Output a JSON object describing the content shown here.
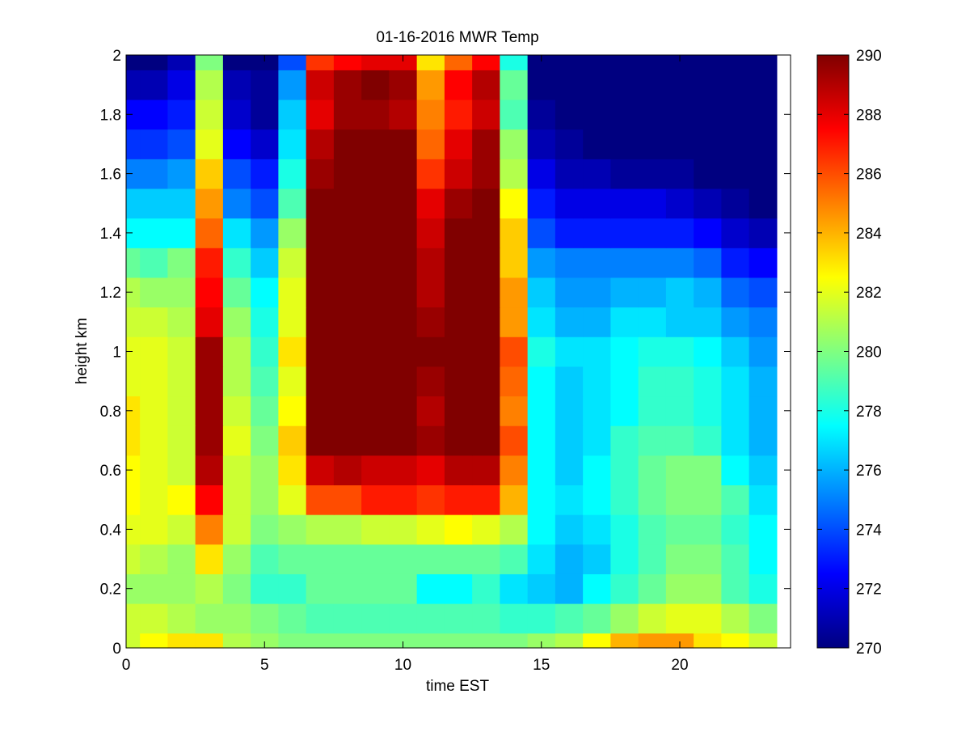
{
  "chart_data": {
    "type": "heatmap",
    "title": "01-16-2016 MWR Temp",
    "xlabel": "time EST",
    "ylabel": "height km",
    "xlim": [
      0,
      24
    ],
    "ylim": [
      0,
      2
    ],
    "xticks": [
      "0",
      "5",
      "10",
      "15",
      "20"
    ],
    "xtick_values": [
      0,
      5,
      10,
      15,
      20
    ],
    "yticks": [
      "0",
      "0.2",
      "0.4",
      "0.6",
      "0.8",
      "1",
      "1.2",
      "1.4",
      "1.6",
      "1.8",
      "2"
    ],
    "ytick_values": [
      0,
      0.2,
      0.4,
      0.6,
      0.8,
      1.0,
      1.2,
      1.4,
      1.6,
      1.8,
      2.0
    ],
    "colorbar": {
      "min": 270,
      "max": 290,
      "colormap": "jet",
      "ticks": [
        "270",
        "272",
        "274",
        "276",
        "278",
        "280",
        "282",
        "284",
        "286",
        "288",
        "290"
      ],
      "tick_values": [
        270,
        272,
        274,
        276,
        278,
        280,
        282,
        284,
        286,
        288,
        290
      ]
    },
    "x_edges": [
      0,
      0.5,
      1.5,
      2.5,
      3.5,
      4.5,
      5.5,
      6.5,
      7.5,
      8.5,
      9.5,
      10.5,
      11.5,
      12.5,
      13.5,
      14.5,
      15.5,
      16.5,
      17.5,
      18.5,
      19.5,
      20.5,
      21.5,
      22.5,
      23.5
    ],
    "y_edges": [
      0,
      0.05,
      0.15,
      0.25,
      0.35,
      0.45,
      0.55,
      0.65,
      0.75,
      0.85,
      0.95,
      1.05,
      1.15,
      1.25,
      1.35,
      1.45,
      1.55,
      1.65,
      1.75,
      1.85,
      1.95,
      2.0
    ],
    "values": [
      [
        281.5,
        282.5,
        283.0,
        283.0,
        281.0,
        280.5,
        280.0,
        280.0,
        280.0,
        280.0,
        280.0,
        280.0,
        280.0,
        280.0,
        280.0,
        280.5,
        281.0,
        282.5,
        284.0,
        284.5,
        284.5,
        283.0,
        282.5,
        281.5
      ],
      [
        281.5,
        281.5,
        281.0,
        280.5,
        280.5,
        280.0,
        279.5,
        279.0,
        279.0,
        279.0,
        279.0,
        279.0,
        279.0,
        279.0,
        278.5,
        278.5,
        279.0,
        279.5,
        280.5,
        281.5,
        282.0,
        282.0,
        281.0,
        280.0
      ],
      [
        280.5,
        280.5,
        280.5,
        281.0,
        280.0,
        278.5,
        278.5,
        279.5,
        279.5,
        279.5,
        279.5,
        277.5,
        277.5,
        278.5,
        277.0,
        276.5,
        276.0,
        277.5,
        278.5,
        279.5,
        280.5,
        280.5,
        279.0,
        278.0
      ],
      [
        281.5,
        281.0,
        280.5,
        283.0,
        280.5,
        279.0,
        279.5,
        279.5,
        279.5,
        279.5,
        279.5,
        279.5,
        279.5,
        279.5,
        279.0,
        277.0,
        276.0,
        276.5,
        278.0,
        279.0,
        280.0,
        280.0,
        279.0,
        277.5
      ],
      [
        282.0,
        282.0,
        281.5,
        285.0,
        281.5,
        280.0,
        280.5,
        281.0,
        281.0,
        281.5,
        281.5,
        282.0,
        282.5,
        282.0,
        281.0,
        277.5,
        276.5,
        277.0,
        278.0,
        279.0,
        279.5,
        279.5,
        278.5,
        277.5
      ],
      [
        282.5,
        282.0,
        282.5,
        287.5,
        281.5,
        280.5,
        282.0,
        286.0,
        286.0,
        287.0,
        287.0,
        286.5,
        287.0,
        287.0,
        284.0,
        277.5,
        277.0,
        277.5,
        278.5,
        279.5,
        280.0,
        280.0,
        279.0,
        277.0
      ],
      [
        282.5,
        282.0,
        281.5,
        289.0,
        281.5,
        280.5,
        283.0,
        288.5,
        289.0,
        288.5,
        288.5,
        288.0,
        289.0,
        289.0,
        285.0,
        277.5,
        276.5,
        277.5,
        278.5,
        279.5,
        280.0,
        280.0,
        277.5,
        276.5
      ],
      [
        283.0,
        282.0,
        281.5,
        289.5,
        282.0,
        280.0,
        283.5,
        290.0,
        290.0,
        290.0,
        290.0,
        289.5,
        290.0,
        290.0,
        286.0,
        277.5,
        276.5,
        277.0,
        278.5,
        279.0,
        279.0,
        278.5,
        277.0,
        276.0
      ],
      [
        283.0,
        282.0,
        281.5,
        289.5,
        281.5,
        279.5,
        282.5,
        290.0,
        290.0,
        290.0,
        290.0,
        289.0,
        290.0,
        290.0,
        285.0,
        277.5,
        276.5,
        277.0,
        277.5,
        278.5,
        278.5,
        278.0,
        277.0,
        276.0
      ],
      [
        282.0,
        282.0,
        281.5,
        289.5,
        281.0,
        279.0,
        282.0,
        290.0,
        290.0,
        290.0,
        290.0,
        289.5,
        290.0,
        290.0,
        285.5,
        277.5,
        276.5,
        277.0,
        277.5,
        278.5,
        278.5,
        278.0,
        277.0,
        276.0
      ],
      [
        282.0,
        282.0,
        281.5,
        289.5,
        281.0,
        278.5,
        283.0,
        290.0,
        290.0,
        290.0,
        290.0,
        290.0,
        290.0,
        290.0,
        286.0,
        278.0,
        277.0,
        277.0,
        277.5,
        278.0,
        278.0,
        277.5,
        276.5,
        275.5
      ],
      [
        281.5,
        281.5,
        281.0,
        288.0,
        280.5,
        278.0,
        282.0,
        290.0,
        290.0,
        290.0,
        290.0,
        289.5,
        290.0,
        290.0,
        284.5,
        277.0,
        276.0,
        276.0,
        277.0,
        277.0,
        276.5,
        276.5,
        275.5,
        275.0
      ],
      [
        281.0,
        280.5,
        280.5,
        287.5,
        279.5,
        277.5,
        282.0,
        290.0,
        290.0,
        290.0,
        290.0,
        289.0,
        290.0,
        290.0,
        284.5,
        276.5,
        275.5,
        275.5,
        276.0,
        276.0,
        276.5,
        276.0,
        274.5,
        274.0
      ],
      [
        279.5,
        279.0,
        280.0,
        287.0,
        278.5,
        276.5,
        281.5,
        290.0,
        290.0,
        290.0,
        290.0,
        289.0,
        290.0,
        290.0,
        283.5,
        275.5,
        275.0,
        275.0,
        275.0,
        275.0,
        275.0,
        274.5,
        273.0,
        272.5
      ],
      [
        277.5,
        277.5,
        277.5,
        285.5,
        277.0,
        275.5,
        280.5,
        290.0,
        290.0,
        290.0,
        290.0,
        288.5,
        290.0,
        290.0,
        283.5,
        274.0,
        273.0,
        273.0,
        273.0,
        273.0,
        273.0,
        272.5,
        271.5,
        271.0
      ],
      [
        276.5,
        276.5,
        276.5,
        284.5,
        275.0,
        274.0,
        279.0,
        290.0,
        290.0,
        290.0,
        290.0,
        288.0,
        289.5,
        290.0,
        282.5,
        273.0,
        272.0,
        272.0,
        272.0,
        272.0,
        271.5,
        271.0,
        270.5,
        270.0
      ],
      [
        275.0,
        275.0,
        275.5,
        283.5,
        274.0,
        273.0,
        278.0,
        289.5,
        290.0,
        290.0,
        290.0,
        286.5,
        288.5,
        289.5,
        281.0,
        272.0,
        271.0,
        271.0,
        270.5,
        270.5,
        270.5,
        270.0,
        270.0,
        270.0
      ],
      [
        273.5,
        273.5,
        274.0,
        282.0,
        272.5,
        271.5,
        277.0,
        289.0,
        290.0,
        290.0,
        290.0,
        285.5,
        288.0,
        289.5,
        280.5,
        271.0,
        270.5,
        270.0,
        270.0,
        270.0,
        270.0,
        270.0,
        270.0,
        270.0
      ],
      [
        272.5,
        272.5,
        273.0,
        281.5,
        271.5,
        270.5,
        276.5,
        288.0,
        289.5,
        289.5,
        289.0,
        285.0,
        287.0,
        288.5,
        279.0,
        270.5,
        270.0,
        270.0,
        270.0,
        270.0,
        270.0,
        270.0,
        270.0,
        270.0
      ],
      [
        271.0,
        271.0,
        272.0,
        281.0,
        271.0,
        270.5,
        275.5,
        288.5,
        289.5,
        290.0,
        289.5,
        284.5,
        287.5,
        289.0,
        279.5,
        270.0,
        270.0,
        270.0,
        270.0,
        270.0,
        270.0,
        270.0,
        270.0,
        270.0
      ],
      [
        270.0,
        270.0,
        271.0,
        280.0,
        270.0,
        270.0,
        274.0,
        286.5,
        287.5,
        288.0,
        288.0,
        283.0,
        285.5,
        287.5,
        278.0,
        270.0,
        270.0,
        270.0,
        270.0,
        270.0,
        270.0,
        270.0,
        270.0,
        270.0
      ]
    ]
  }
}
